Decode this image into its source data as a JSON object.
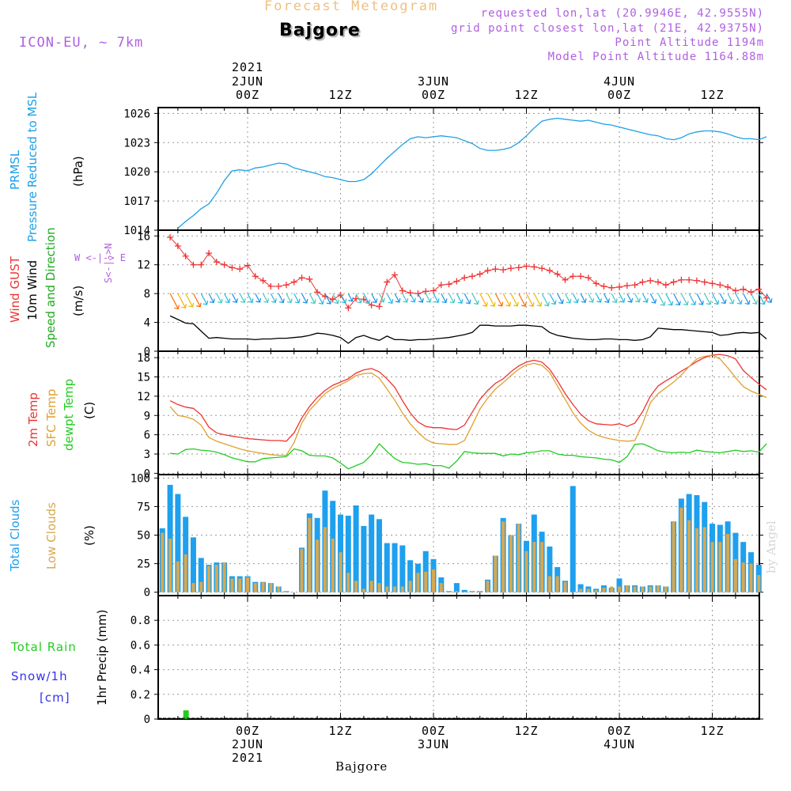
{
  "header": {
    "title": "Forecast Meteogram",
    "place": "Bajgore",
    "model": "ICON-EU, ~ 7km",
    "requested": "requested lon,lat (20.9946E, 42.9555N)",
    "gridpoint": "grid point closest lon,lat (21E, 42.9375N)",
    "point_alt": "Point Altitude 1194m",
    "model_alt": "Model Point Altitude 1164.88m"
  },
  "top_axis": {
    "year": "2021",
    "labels": [
      {
        "date": "2JUN",
        "time": "00Z"
      },
      {
        "date": "",
        "time": "12Z"
      },
      {
        "date": "3JUN",
        "time": "00Z"
      },
      {
        "date": "",
        "time": "12Z"
      },
      {
        "date": "4JUN",
        "time": "00Z"
      },
      {
        "date": "",
        "time": "12Z"
      }
    ]
  },
  "bottom_axis": {
    "year": "2021",
    "labels": [
      {
        "date": "2JUN",
        "time": "00Z"
      },
      {
        "date": "",
        "time": "12Z"
      },
      {
        "date": "3JUN",
        "time": "00Z"
      },
      {
        "date": "",
        "time": "12Z"
      },
      {
        "date": "4JUN",
        "time": "00Z"
      },
      {
        "date": "",
        "time": "12Z"
      }
    ],
    "place": "Bajgore"
  },
  "panel_labels": {
    "pressure": {
      "l1": "PRMSL",
      "l2": "Pressure Reduced to MSL",
      "unit": "(hPa)"
    },
    "wind": {
      "gust": "Wind GUST",
      "wind10": "10m Wind",
      "dir": "Speed and Direction",
      "unit": "(m/s)",
      "compass_n": "N",
      "compass_s": "S",
      "compass_row": "W <-|-> E",
      "compass_s_row": "S<-|->N"
    },
    "temp": {
      "t2m": "2m Temp",
      "sfc": "SFC Temp",
      "dew": "dewpt Temp",
      "unit": "(C)"
    },
    "cloud": {
      "total": "Total Clouds",
      "low": "Low Clouds",
      "unit": "(%)"
    },
    "precip": {
      "rain": "Total  Rain",
      "snow": "Snow/1h",
      "snow_unit": "[cm]",
      "axis": "1hr Precip (mm)"
    }
  },
  "watermark": "by Angel",
  "colors": {
    "pressure": "#1ea0e6",
    "gust": "#ee3333",
    "wind": "#000000",
    "t2m": "#ee3333",
    "sfc": "#e0a030",
    "dew": "#22cc22",
    "total_clouds": "#1ea0ee",
    "low_clouds": "#d8a850",
    "rain": "#22cc22",
    "snow": "#3333ee",
    "header_purple": "#b060e0",
    "title_orange": "#f0c080"
  },
  "chart_data": [
    {
      "type": "line",
      "name": "pressure",
      "ylabel": "(hPa)",
      "ylim": [
        1014,
        1026.6
      ],
      "yticks": [
        1014,
        1017,
        1020,
        1023,
        1026
      ],
      "x_hours": [
        -9,
        -8,
        -7,
        -6,
        -5,
        -4,
        -3,
        -2,
        -1,
        0,
        1,
        2,
        3,
        4,
        5,
        6,
        7,
        8,
        9,
        10,
        11,
        12,
        13,
        14,
        15,
        16,
        17,
        18,
        19,
        20,
        21,
        22,
        23,
        24,
        25,
        26,
        27,
        28,
        29,
        30,
        31,
        32,
        33,
        34,
        35,
        36,
        37,
        38,
        39,
        40,
        41,
        42,
        43,
        44,
        45,
        46,
        47,
        48,
        49,
        50,
        51,
        52,
        53,
        54,
        55,
        56,
        57,
        58,
        59,
        60,
        61,
        62,
        63,
        64,
        65,
        66,
        67
      ],
      "series": [
        {
          "name": "PRMSL",
          "values": [
            1014.2,
            1014.9,
            1015.5,
            1016.2,
            1016.7,
            1017.8,
            1019.1,
            1020.1,
            1020.2,
            1020.1,
            1020.4,
            1020.5,
            1020.7,
            1020.9,
            1020.8,
            1020.4,
            1020.2,
            1020,
            1019.8,
            1019.5,
            1019.4,
            1019.2,
            1019,
            1019,
            1019.2,
            1019.8,
            1020.6,
            1021.4,
            1022.1,
            1022.8,
            1023.4,
            1023.6,
            1023.5,
            1023.6,
            1023.7,
            1023.6,
            1023.5,
            1023.2,
            1022.9,
            1022.4,
            1022.2,
            1022.2,
            1022.3,
            1022.5,
            1023,
            1023.7,
            1024.5,
            1025.2,
            1025.4,
            1025.5,
            1025.4,
            1025.3,
            1025.2,
            1025.3,
            1025.1,
            1024.9,
            1024.8,
            1024.6,
            1024.4,
            1024.2,
            1024,
            1023.8,
            1023.7,
            1023.4,
            1023.3,
            1023.5,
            1023.9,
            1024.1,
            1024.2,
            1024.2,
            1024.1,
            1023.9,
            1023.6,
            1023.4,
            1023.4,
            1023.3,
            1023.6
          ]
        }
      ]
    },
    {
      "type": "line",
      "name": "wind",
      "ylabel": "(m/s)",
      "ylim": [
        0,
        16.8
      ],
      "yticks": [
        0,
        4,
        8,
        12,
        16
      ],
      "x_hours": [
        -10,
        -9,
        -8,
        -7,
        -6,
        -5,
        -4,
        -3,
        -2,
        -1,
        0,
        1,
        2,
        3,
        4,
        5,
        6,
        7,
        8,
        9,
        10,
        11,
        12,
        13,
        14,
        15,
        16,
        17,
        18,
        19,
        20,
        21,
        22,
        23,
        24,
        25,
        26,
        27,
        28,
        29,
        30,
        31,
        32,
        33,
        34,
        35,
        36,
        37,
        38,
        39,
        40,
        41,
        42,
        43,
        44,
        45,
        46,
        47,
        48,
        49,
        50,
        51,
        52,
        53,
        54,
        55,
        56,
        57,
        58,
        59,
        60,
        61,
        62,
        63,
        64,
        65,
        66,
        67
      ],
      "series": [
        {
          "name": "Wind GUST",
          "values": [
            15.8,
            14.6,
            13.2,
            12,
            12,
            13.6,
            12.4,
            12,
            11.6,
            11.4,
            11.9,
            10.4,
            9.8,
            9,
            9,
            9.2,
            9.6,
            10.2,
            10,
            8.2,
            7.6,
            7.2,
            7.8,
            6,
            7.3,
            7.2,
            6.4,
            6.2,
            9.6,
            10.6,
            8.4,
            8.1,
            8,
            8.3,
            8.4,
            9.2,
            9.3,
            9.7,
            10.2,
            10.4,
            10.7,
            11.2,
            11.4,
            11.3,
            11.5,
            11.6,
            11.8,
            11.7,
            11.5,
            11.2,
            10.7,
            9.9,
            10.4,
            10.4,
            10.2,
            9.4,
            9,
            8.8,
            8.9,
            9.1,
            9.2,
            9.6,
            9.8,
            9.6,
            9.2,
            9.6,
            9.9,
            9.9,
            9.8,
            9.6,
            9.4,
            9.2,
            8.9,
            8.4,
            8.6,
            8.2,
            8.6,
            7.4
          ]
        },
        {
          "name": "10m Wind",
          "values": [
            4.9,
            4.4,
            3.9,
            3.8,
            2.8,
            1.8,
            1.9,
            1.8,
            1.7,
            1.7,
            1.7,
            1.6,
            1.7,
            1.7,
            1.8,
            1.8,
            1.9,
            2,
            2.2,
            2.5,
            2.4,
            2.2,
            1.9,
            1.1,
            1.9,
            2.2,
            1.8,
            1.5,
            2.1,
            1.6,
            1.6,
            1.5,
            1.6,
            1.6,
            1.7,
            1.8,
            1.9,
            2.1,
            2.3,
            2.6,
            3.6,
            3.6,
            3.5,
            3.5,
            3.5,
            3.6,
            3.6,
            3.5,
            3.4,
            2.6,
            2.2,
            2,
            1.8,
            1.7,
            1.6,
            1.6,
            1.7,
            1.7,
            1.6,
            1.6,
            1.5,
            1.6,
            2,
            3.2,
            3.1,
            3,
            3,
            2.9,
            2.8,
            2.7,
            2.6,
            2.2,
            2.3,
            2.5,
            2.6,
            2.5,
            2.6,
            1.7
          ]
        }
      ]
    },
    {
      "type": "line",
      "name": "temperature",
      "ylabel": "(C)",
      "ylim": [
        -0.2,
        19
      ],
      "yticks": [
        0,
        3,
        6,
        9,
        12,
        15,
        18
      ],
      "x_hours": [
        -10,
        -9,
        -8,
        -7,
        -6,
        -5,
        -4,
        -3,
        -2,
        -1,
        0,
        1,
        2,
        3,
        4,
        5,
        6,
        7,
        8,
        9,
        10,
        11,
        12,
        13,
        14,
        15,
        16,
        17,
        18,
        19,
        20,
        21,
        22,
        23,
        24,
        25,
        26,
        27,
        28,
        29,
        30,
        31,
        32,
        33,
        34,
        35,
        36,
        37,
        38,
        39,
        40,
        41,
        42,
        43,
        44,
        45,
        46,
        47,
        48,
        49,
        50,
        51,
        52,
        53,
        54,
        55,
        56,
        57,
        58,
        59,
        60,
        61,
        62,
        63,
        64,
        65,
        66,
        67
      ],
      "series": [
        {
          "name": "2m Temp",
          "values": [
            11.3,
            10.7,
            10.3,
            10.1,
            9.1,
            7.2,
            6.3,
            6,
            5.8,
            5.6,
            5.4,
            5.3,
            5.2,
            5.1,
            5.1,
            5,
            6.3,
            8.6,
            10.4,
            11.8,
            12.9,
            13.7,
            14.2,
            14.7,
            15.6,
            16.1,
            16.3,
            15.8,
            14.7,
            13.4,
            11.3,
            9.4,
            8,
            7.3,
            7.1,
            7.1,
            6.9,
            6.8,
            7.5,
            9.5,
            11.5,
            12.9,
            14,
            14.7,
            15.8,
            16.7,
            17.3,
            17.6,
            17.3,
            16.2,
            14.4,
            12.4,
            10.7,
            9.2,
            8.2,
            7.7,
            7.6,
            7.5,
            7.7,
            7.3,
            7.8,
            9.6,
            12,
            13.6,
            14.4,
            15.1,
            15.9,
            16.6,
            17.4,
            18,
            18.4,
            18.5,
            18.3,
            17.8,
            16,
            14.9,
            13.9,
            13
          ]
        },
        {
          "name": "SFC Temp",
          "values": [
            10.4,
            9,
            8.8,
            8.4,
            7.5,
            5.6,
            5,
            4.6,
            4.2,
            3.8,
            3.5,
            3.3,
            3.1,
            2.9,
            2.8,
            2.8,
            4.8,
            7.8,
            9.8,
            11.1,
            12.4,
            13.2,
            13.8,
            14.4,
            15.2,
            15.5,
            15.6,
            14.8,
            13.1,
            11.4,
            9.4,
            7.7,
            6.4,
            5.3,
            4.7,
            4.6,
            4.5,
            4.5,
            5.1,
            7.5,
            10,
            11.7,
            13.1,
            14.1,
            15.2,
            16.2,
            16.9,
            17.1,
            16.8,
            15.7,
            13.6,
            11.5,
            9.4,
            7.8,
            6.7,
            6,
            5.6,
            5.3,
            5.1,
            5,
            5.1,
            7.7,
            11,
            12.4,
            13.3,
            14.2,
            15.3,
            16.6,
            17.8,
            18.2,
            18.4,
            17.8,
            16.4,
            14.9,
            13.5,
            12.8,
            12.3,
            11.8
          ]
        },
        {
          "name": "dewpt Temp",
          "values": [
            3.1,
            3,
            3.7,
            3.8,
            3.6,
            3.5,
            3.3,
            2.9,
            2.4,
            2.1,
            1.8,
            1.8,
            2.3,
            2.4,
            2.5,
            2.6,
            3.8,
            3.5,
            2.8,
            2.7,
            2.7,
            2.4,
            1.6,
            0.7,
            1.2,
            1.7,
            2.9,
            4.6,
            3.4,
            2.3,
            1.7,
            1.6,
            1.4,
            1.5,
            1.2,
            1.2,
            0.8,
            1.9,
            3.4,
            3.2,
            3.1,
            3.1,
            3.1,
            2.7,
            3,
            2.9,
            3.2,
            3.3,
            3.5,
            3.5,
            3,
            2.8,
            2.8,
            2.6,
            2.5,
            2.4,
            2.2,
            2.1,
            1.7,
            2.6,
            4.5,
            4.6,
            4.1,
            3.5,
            3.3,
            3.2,
            3.3,
            3.2,
            3.6,
            3.4,
            3.3,
            3.2,
            3.4,
            3.6,
            3.4,
            3.5,
            3.3,
            4.6
          ]
        }
      ]
    },
    {
      "type": "bar",
      "name": "clouds",
      "ylabel": "(%)",
      "ylim": [
        -3,
        103
      ],
      "yticks": [
        0,
        25,
        50,
        75,
        100
      ],
      "x_hours": [
        -11,
        -10,
        -9,
        -8,
        -7,
        -6,
        -5,
        -4,
        -3,
        -2,
        -1,
        0,
        1,
        2,
        3,
        4,
        5,
        6,
        7,
        8,
        9,
        10,
        11,
        12,
        13,
        14,
        15,
        16,
        17,
        18,
        19,
        20,
        21,
        22,
        23,
        24,
        25,
        26,
        27,
        28,
        29,
        30,
        31,
        32,
        33,
        34,
        35,
        36,
        37,
        38,
        39,
        40,
        41,
        42,
        43,
        44,
        45,
        46,
        47,
        48,
        49,
        50,
        51,
        52,
        53,
        54,
        55,
        56,
        57,
        58,
        59,
        60,
        61,
        62,
        63,
        64,
        65,
        66,
        67
      ],
      "series": [
        {
          "name": "Total Clouds",
          "values": [
            56,
            94,
            86,
            66,
            48,
            30,
            24,
            26,
            26,
            14,
            14,
            14,
            9,
            9,
            8,
            5,
            1,
            0,
            39,
            69,
            65,
            89,
            80,
            68,
            67,
            76,
            58,
            68,
            64,
            43,
            43,
            41,
            28,
            25,
            36,
            29,
            13,
            1,
            8,
            2,
            1,
            1,
            11,
            32,
            65,
            50,
            60,
            45,
            68,
            53,
            40,
            22,
            10,
            93,
            7,
            5,
            3,
            6,
            4,
            12,
            6,
            6,
            5,
            6,
            6,
            5,
            62,
            82,
            86,
            85,
            79,
            60,
            59,
            62,
            52,
            44,
            35,
            24
          ]
        },
        {
          "name": "Low Clouds",
          "values": [
            52,
            47,
            27,
            33,
            8,
            9,
            23,
            24,
            26,
            12,
            12,
            13,
            8,
            9,
            8,
            5,
            1,
            0,
            38,
            65,
            46,
            57,
            47,
            35,
            17,
            10,
            3,
            10,
            8,
            5,
            5,
            5,
            10,
            17,
            18,
            20,
            8,
            1,
            1,
            0,
            1,
            1,
            10,
            32,
            62,
            50,
            60,
            36,
            44,
            44,
            14,
            14,
            9,
            0,
            3,
            3,
            2,
            4,
            5,
            5,
            6,
            5,
            5,
            5,
            6,
            5,
            62,
            74,
            63,
            56,
            57,
            44,
            44,
            51,
            29,
            26,
            25,
            15
          ]
        }
      ]
    },
    {
      "type": "bar",
      "name": "precipitation",
      "ylabel": "1hr Precip (mm)",
      "ylim": [
        0,
        1
      ],
      "yticks": [
        0,
        0.2,
        0.4,
        0.6,
        0.8
      ],
      "x_hours": [
        -8
      ],
      "series": [
        {
          "name": "Total Rain",
          "values": [
            0.07
          ]
        }
      ]
    }
  ]
}
